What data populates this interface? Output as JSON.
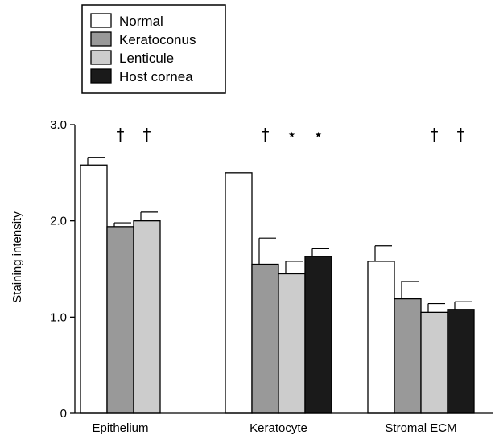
{
  "chart_data": {
    "type": "bar",
    "categories": [
      "Epithelium",
      "Keratocyte",
      "Stromal ECM"
    ],
    "ylabel": "Staining intensity",
    "ylim": [
      0,
      3.0
    ],
    "yticks": [
      "0",
      "1.0",
      "2.0",
      "3.0"
    ],
    "ytick_values": [
      0,
      1.0,
      2.0,
      3.0
    ],
    "legend_position": "top-left",
    "series": [
      {
        "name": "Normal",
        "color": "#ffffff",
        "values": [
          2.58,
          2.5,
          1.58
        ],
        "errors": [
          0.08,
          null,
          0.16
        ]
      },
      {
        "name": "Keratoconus",
        "color": "#999999",
        "values": [
          1.94,
          1.55,
          1.19
        ],
        "errors": [
          0.04,
          0.27,
          0.18
        ]
      },
      {
        "name": "Lenticule",
        "color": "#cccccc",
        "values": [
          2.0,
          1.45,
          1.05
        ],
        "errors": [
          0.09,
          0.13,
          0.09
        ]
      },
      {
        "name": "Host cornea",
        "color": "#1a1a1a",
        "values": [
          null,
          1.63,
          1.08
        ],
        "errors": [
          null,
          0.08,
          0.08
        ]
      }
    ],
    "significance_markers": [
      {
        "category": "Epithelium",
        "series": "Keratoconus",
        "symbol": "†"
      },
      {
        "category": "Epithelium",
        "series": "Lenticule",
        "symbol": "†"
      },
      {
        "category": "Keratocyte",
        "series": "Keratoconus",
        "symbol": "†"
      },
      {
        "category": "Keratocyte",
        "series": "Lenticule",
        "symbol": "⋆"
      },
      {
        "category": "Keratocyte",
        "series": "Host cornea",
        "symbol": "⋆"
      },
      {
        "category": "Stromal ECM",
        "series": "Lenticule",
        "symbol": "†"
      },
      {
        "category": "Stromal ECM",
        "series": "Host cornea",
        "symbol": "†"
      }
    ]
  }
}
